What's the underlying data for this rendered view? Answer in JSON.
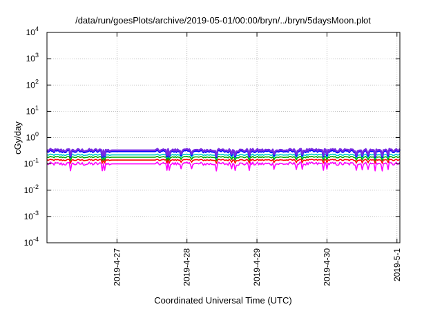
{
  "chart_data": {
    "type": "line",
    "title": "/data/run/goesPlots/archive/2019-05-01/00:00/bryn/../bryn/5daysMoon.plot",
    "xlabel": "Coordinated Universal Time (UTC)",
    "ylabel": "cGy/day",
    "yscale": "log",
    "ylim": [
      0.0001,
      10000
    ],
    "y_ticks": [
      {
        "base": "10",
        "exp": "-4",
        "value": 0.0001
      },
      {
        "base": "10",
        "exp": "-3",
        "value": 0.001
      },
      {
        "base": "10",
        "exp": "-2",
        "value": 0.01
      },
      {
        "base": "10",
        "exp": "-1",
        "value": 0.1
      },
      {
        "base": "10",
        "exp": "0",
        "value": 1
      },
      {
        "base": "10",
        "exp": "1",
        "value": 10
      },
      {
        "base": "10",
        "exp": "2",
        "value": 100
      },
      {
        "base": "10",
        "exp": "3",
        "value": 1000
      },
      {
        "base": "10",
        "exp": "4",
        "value": 10000
      }
    ],
    "xlim": [
      "2019-04-26 00:00",
      "2019-05-01 01:00"
    ],
    "x_ticks": [
      "2019-4-27",
      "2019-4-28",
      "2019-4-29",
      "2019-4-30",
      "2019-5-1"
    ],
    "grid": true,
    "series_colors": [
      "#ff00ff",
      "#ff0000",
      "#00aa00",
      "#00cccc",
      "#0000ff",
      "#7a2be2"
    ],
    "series_levels": [
      0.1,
      0.14,
      0.18,
      0.22,
      0.3,
      0.33
    ]
  }
}
